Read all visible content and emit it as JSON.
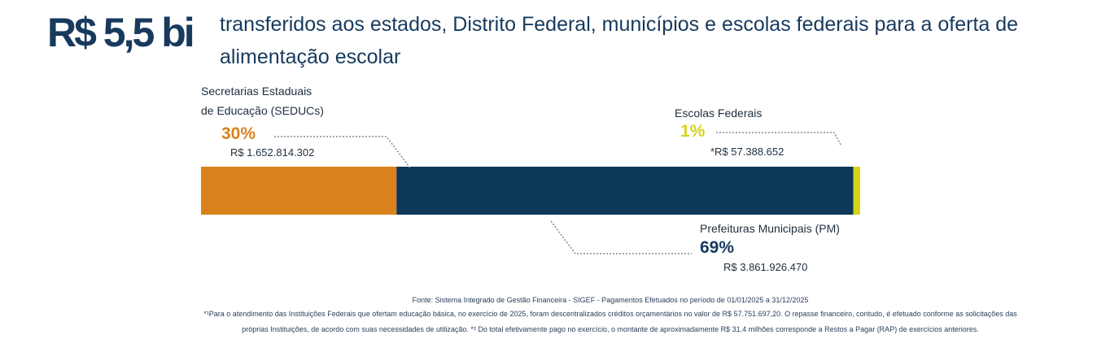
{
  "header": {
    "total": "R$ 5,5 bi",
    "text": "transferidos aos estados, Distrito Federal, municípios e escolas federais para a oferta de alimentação escolar"
  },
  "chart_data": {
    "type": "bar",
    "orientation": "horizontal-stacked",
    "segments": [
      {
        "label_line1": "Secretarias Estaduais",
        "label_line2": "de Educação (SEDUCs)",
        "percent_label": "30%",
        "value_label": "R$ 1.652.814.302",
        "value": 1652814302,
        "color": "#D9821B"
      },
      {
        "label": "Prefeituras Municipais (PM)",
        "percent_label": "69%",
        "value_label": "R$ 3.861.926.470",
        "value": 3861926470,
        "color": "#0E3858"
      },
      {
        "label": "Escolas Federais",
        "percent_label": "1%",
        "value_label": "*R$ 57.388.652",
        "value": 57388652,
        "color": "#D4D41C"
      }
    ]
  },
  "footer": {
    "source": "Fonte: Sistema Integrado de Gestão Financeira - SIGEF - Pagamentos Efetuados no período de 01/01/2025 a 31/12/2025",
    "note1": "*¹Para o atendimento das Instituições Federais que ofertam educação básica, no exercício de 2025, foram descentralizados créditos orçamentários no valor de R$ 57.751.697,20. O repasse financeiro, contudo, é efetuado conforme as solicitações das",
    "note2": "próprias Instituições, de acordo com suas necessidades de utilização. *² Do total efetivamente pago no exercício, o montante de aproximadamente R$ 31,4 milhões corresponde a Restos a Pagar (RAP) de exercícios anteriores."
  }
}
